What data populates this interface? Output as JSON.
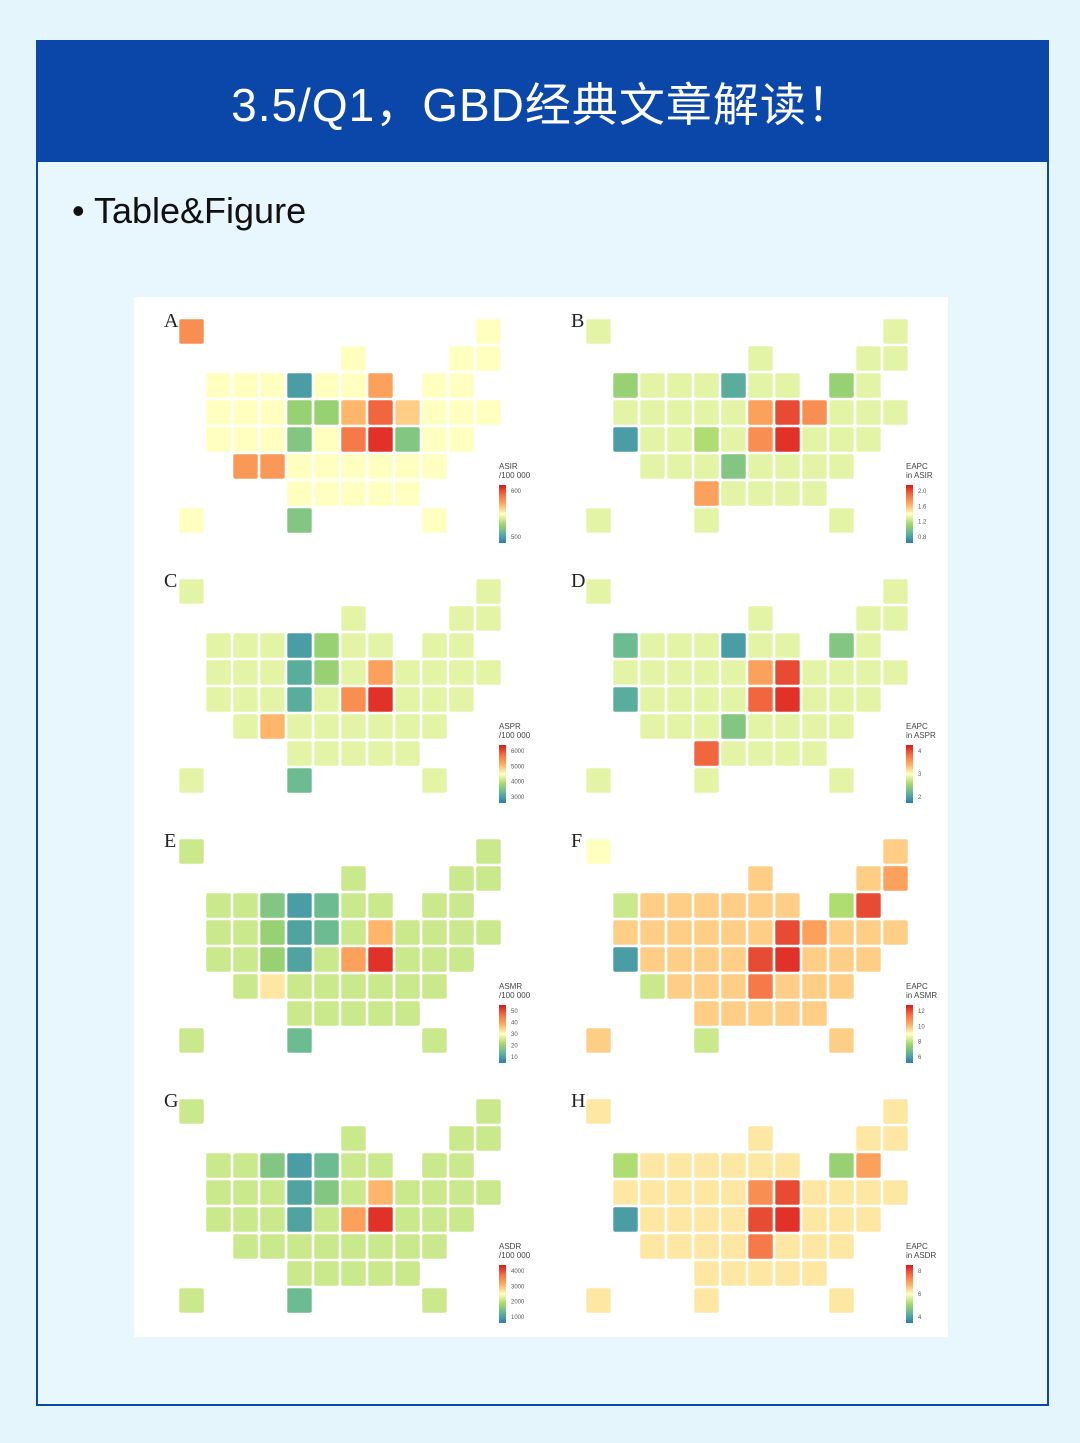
{
  "header": {
    "title": "3.5/Q1，GBD经典文章解读！"
  },
  "bullet": {
    "text": "Table&Figure"
  },
  "palette": [
    "#2c7bb6",
    "#5fb39a",
    "#a6d96a",
    "#ffffbf",
    "#fdae61",
    "#f46d43",
    "#d7191c"
  ],
  "chart_data": [
    {
      "type": "map",
      "label": "A",
      "legend_title": [
        "ASIR",
        "/100 000"
      ],
      "legend_ticks": [
        "600",
        "500"
      ],
      "default": 0.5,
      "values": {
        "ND": 0.1,
        "NE": 0.25,
        "IA": 0.3,
        "TX": 0.25,
        "WV": 0.95,
        "OH": 0.85,
        "KY": 0.8,
        "MI": 0.7,
        "AK": 0.75,
        "AZ": 0.72,
        "NM": 0.72,
        "VA": 0.25,
        "SD": 0.3,
        "IN": 0.65,
        "PA": 0.6
      }
    },
    {
      "type": "map",
      "label": "B",
      "legend_title": [
        "EAPC",
        "in ASIR"
      ],
      "legend_ticks": [
        "2.0",
        "1.6",
        "1.2",
        "0.8"
      ],
      "default": 0.45,
      "values": {
        "CA": 0.1,
        "MN": 0.15,
        "WA": 0.3,
        "NY": 0.3,
        "OH": 0.9,
        "WV": 0.95,
        "PA": 0.75,
        "KY": 0.75,
        "OK": 0.7,
        "AR": 0.25,
        "NE": 0.35,
        "IN": 0.7
      }
    },
    {
      "type": "map",
      "label": "C",
      "legend_title": [
        "ASPR",
        "/100 000"
      ],
      "legend_ticks": [
        "6000",
        "5000",
        "4000",
        "3000"
      ],
      "default": 0.45,
      "values": {
        "ND": 0.1,
        "SD": 0.15,
        "NE": 0.15,
        "TX": 0.2,
        "WV": 0.95,
        "KY": 0.75,
        "OH": 0.7,
        "IA": 0.3,
        "NM": 0.65,
        "MN": 0.3
      }
    },
    {
      "type": "map",
      "label": "D",
      "legend_title": [
        "EAPC",
        "in ASPR"
      ],
      "legend_ticks": [
        "4",
        "3",
        "2"
      ],
      "default": 0.45,
      "values": {
        "CA": 0.15,
        "MN": 0.1,
        "WA": 0.2,
        "NY": 0.25,
        "OK": 0.85,
        "WV": 0.95,
        "OH": 0.9,
        "KY": 0.85,
        "AR": 0.25,
        "IN": 0.7
      }
    },
    {
      "type": "map",
      "label": "E",
      "legend_title": [
        "ASMR",
        "/100 000"
      ],
      "legend_ticks": [
        "50",
        "40",
        "30",
        "20",
        "10"
      ],
      "default": 0.4,
      "values": {
        "ND": 0.1,
        "SD": 0.12,
        "NE": 0.12,
        "MN": 0.2,
        "MT": 0.25,
        "WY": 0.3,
        "TX": 0.2,
        "WV": 0.95,
        "KY": 0.7,
        "OH": 0.65,
        "IA": 0.2,
        "CO": 0.3,
        "NM": 0.55
      }
    },
    {
      "type": "map",
      "label": "F",
      "legend_title": [
        "EAPC",
        "in ASMR"
      ],
      "legend_ticks": [
        "12",
        "10",
        "8",
        "6"
      ],
      "default": 0.6,
      "values": {
        "CA": 0.1,
        "WV": 0.95,
        "OH": 0.9,
        "KY": 0.9,
        "TN": 0.8,
        "PA": 0.7,
        "MA": 0.9,
        "NH": 0.7,
        "TX": 0.4,
        "WA": 0.4,
        "NY": 0.35,
        "AZ": 0.4,
        "AK": 0.5
      }
    },
    {
      "type": "map",
      "label": "G",
      "legend_title": [
        "ASDR",
        "/100 000"
      ],
      "legend_ticks": [
        "4000",
        "3000",
        "2000",
        "1000"
      ],
      "default": 0.4,
      "values": {
        "ND": 0.1,
        "SD": 0.12,
        "NE": 0.12,
        "MN": 0.2,
        "MT": 0.25,
        "TX": 0.2,
        "WV": 0.95,
        "KY": 0.7,
        "OH": 0.65,
        "IA": 0.25
      }
    },
    {
      "type": "map",
      "label": "H",
      "legend_title": [
        "EAPC",
        "in ASDR"
      ],
      "legend_ticks": [
        "8",
        "6",
        "4"
      ],
      "default": 0.55,
      "values": {
        "CA": 0.1,
        "WV": 0.95,
        "OH": 0.9,
        "KY": 0.9,
        "TN": 0.8,
        "NY": 0.3,
        "WA": 0.35,
        "IN": 0.75,
        "MA": 0.7
      }
    }
  ]
}
